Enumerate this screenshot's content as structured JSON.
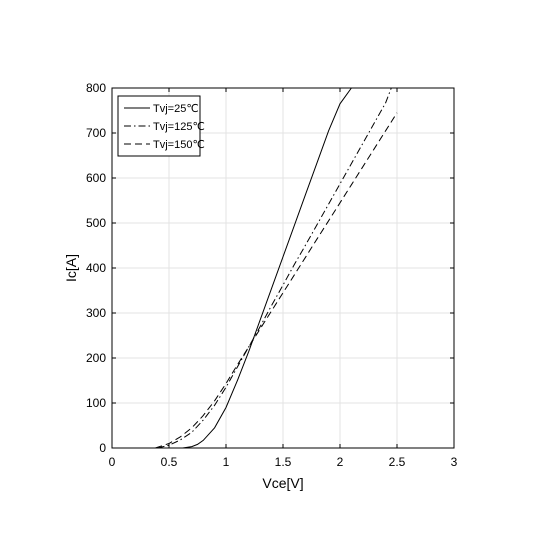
{
  "chart_data": {
    "type": "line",
    "title": "",
    "xlabel": "Vce[V]",
    "ylabel": "Ic[A]",
    "xlim": [
      0,
      3
    ],
    "ylim": [
      0,
      800
    ],
    "xticks": [
      0,
      0.5,
      1,
      1.5,
      2,
      2.5,
      3
    ],
    "xtick_labels": [
      "0",
      "0.5",
      "1",
      "1.5",
      "2",
      "2.5",
      "3"
    ],
    "yticks": [
      0,
      100,
      200,
      300,
      400,
      500,
      600,
      700,
      800
    ],
    "ytick_labels": [
      "0",
      "100",
      "200",
      "300",
      "400",
      "500",
      "600",
      "700",
      "800"
    ],
    "grid": true,
    "legend_position": "top-left",
    "line_color": "#000000",
    "series": [
      {
        "name": "Tvj=25℃",
        "style": "solid",
        "x": [
          0.62,
          0.7,
          0.75,
          0.8,
          0.9,
          1.0,
          1.1,
          1.2,
          1.3,
          1.4,
          1.5,
          1.6,
          1.7,
          1.8,
          1.9,
          2.0,
          2.1
        ],
        "y": [
          0,
          3,
          8,
          17,
          45,
          90,
          150,
          215,
          285,
          355,
          425,
          495,
          565,
          635,
          705,
          765,
          800
        ]
      },
      {
        "name": "Tvj=125℃",
        "style": "dashdot",
        "x": [
          0.4,
          0.5,
          0.6,
          0.7,
          0.8,
          0.9,
          1.0,
          1.1,
          1.2,
          1.3,
          1.4,
          1.5,
          1.6,
          1.7,
          1.8,
          1.9,
          2.0,
          2.1,
          2.2,
          2.3,
          2.4,
          2.45
        ],
        "y": [
          0,
          6,
          18,
          35,
          62,
          95,
          135,
          180,
          225,
          270,
          317,
          362,
          408,
          452,
          497,
          542,
          587,
          632,
          677,
          722,
          767,
          800
        ]
      },
      {
        "name": "Tvj=150℃",
        "style": "dashed",
        "x": [
          0.38,
          0.5,
          0.6,
          0.7,
          0.8,
          0.9,
          1.0,
          1.1,
          1.2,
          1.3,
          1.4,
          1.5,
          1.6,
          1.7,
          1.8,
          1.9,
          2.0,
          2.1,
          2.2,
          2.3,
          2.4,
          2.5
        ],
        "y": [
          0,
          10,
          25,
          45,
          72,
          105,
          143,
          185,
          225,
          265,
          305,
          345,
          385,
          425,
          465,
          505,
          545,
          585,
          625,
          665,
          705,
          745
        ]
      }
    ]
  }
}
